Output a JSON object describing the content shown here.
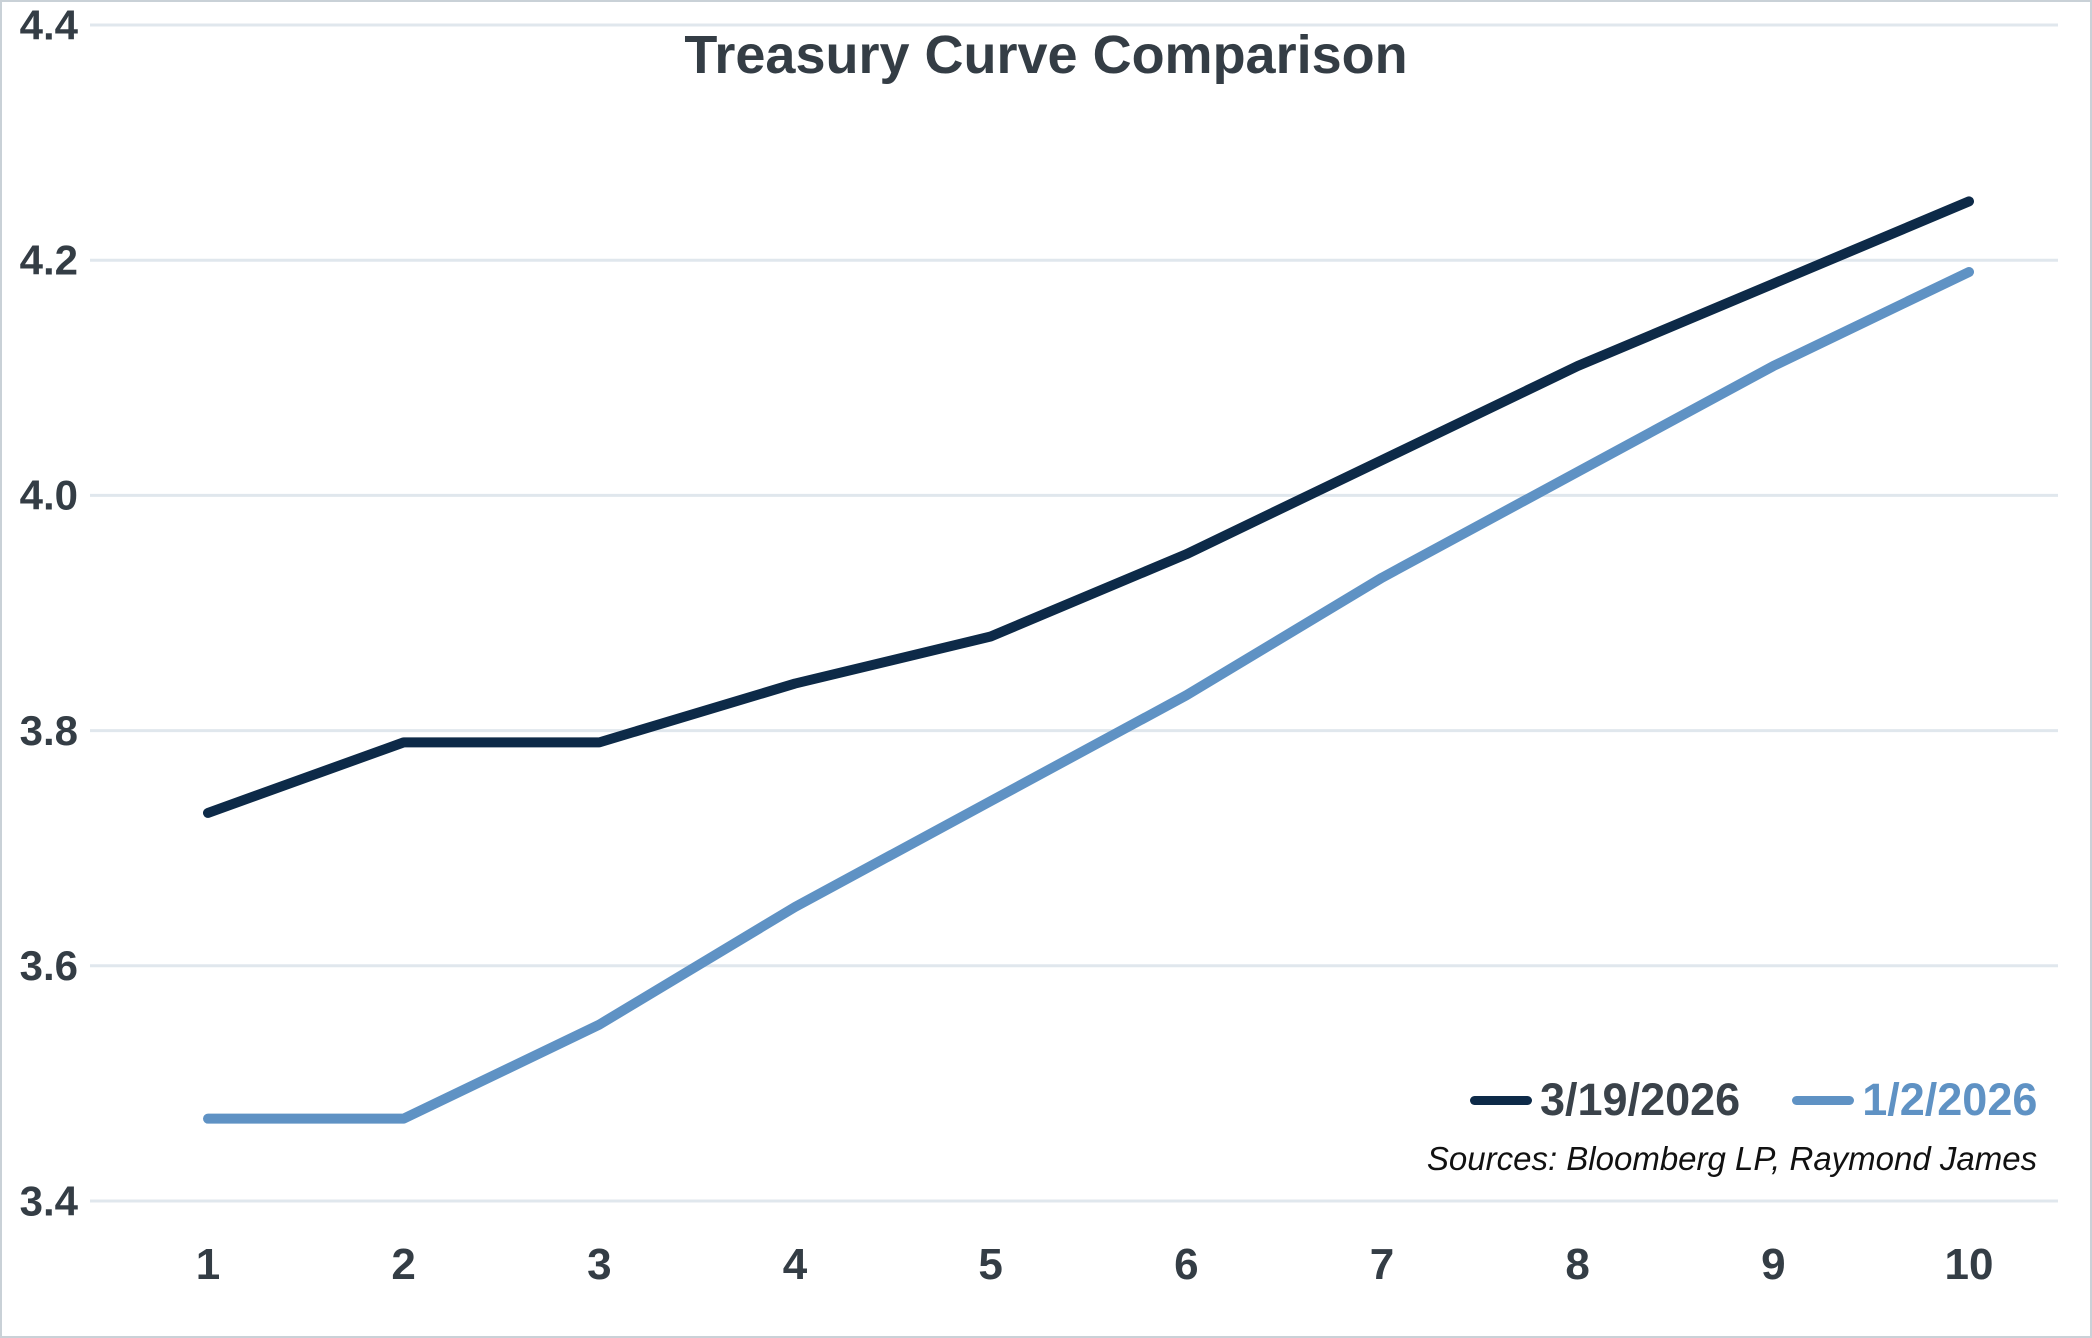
{
  "title": "Treasury Curve Comparison",
  "sources": "Sources: Bloomberg LP, Raymond James",
  "colors": {
    "series1_line": "#0d2a48",
    "series2_line": "#5f92c4",
    "gridline": "#e0e7ed",
    "axis_text": "#343d45",
    "title_text": "#343d45",
    "border": "#c9d1d7",
    "sources_text": "#111111"
  },
  "chart_data": {
    "type": "line",
    "title": "Treasury Curve Comparison",
    "xlabel": "",
    "ylabel": "",
    "x": [
      1,
      2,
      3,
      4,
      5,
      6,
      7,
      8,
      9,
      10
    ],
    "xtick_labels": [
      "1",
      "2",
      "3",
      "4",
      "5",
      "6",
      "7",
      "8",
      "9",
      "10"
    ],
    "series": [
      {
        "name": "3/19/2026",
        "color": "#0d2a48",
        "values": [
          3.73,
          3.79,
          3.79,
          3.84,
          3.88,
          3.95,
          4.03,
          4.11,
          4.18,
          4.25
        ]
      },
      {
        "name": "1/2/2026",
        "color": "#5f92c4",
        "values": [
          3.47,
          3.47,
          3.55,
          3.65,
          3.74,
          3.83,
          3.93,
          4.02,
          4.11,
          4.19
        ]
      }
    ],
    "ylim": [
      3.4,
      4.4
    ],
    "yticks": [
      3.4,
      3.6,
      3.8,
      4.0,
      4.2,
      4.4
    ],
    "grid": "horizontal",
    "legend_position": "inside-bottom-right",
    "annotation": "Sources: Bloomberg LP, Raymond James"
  }
}
